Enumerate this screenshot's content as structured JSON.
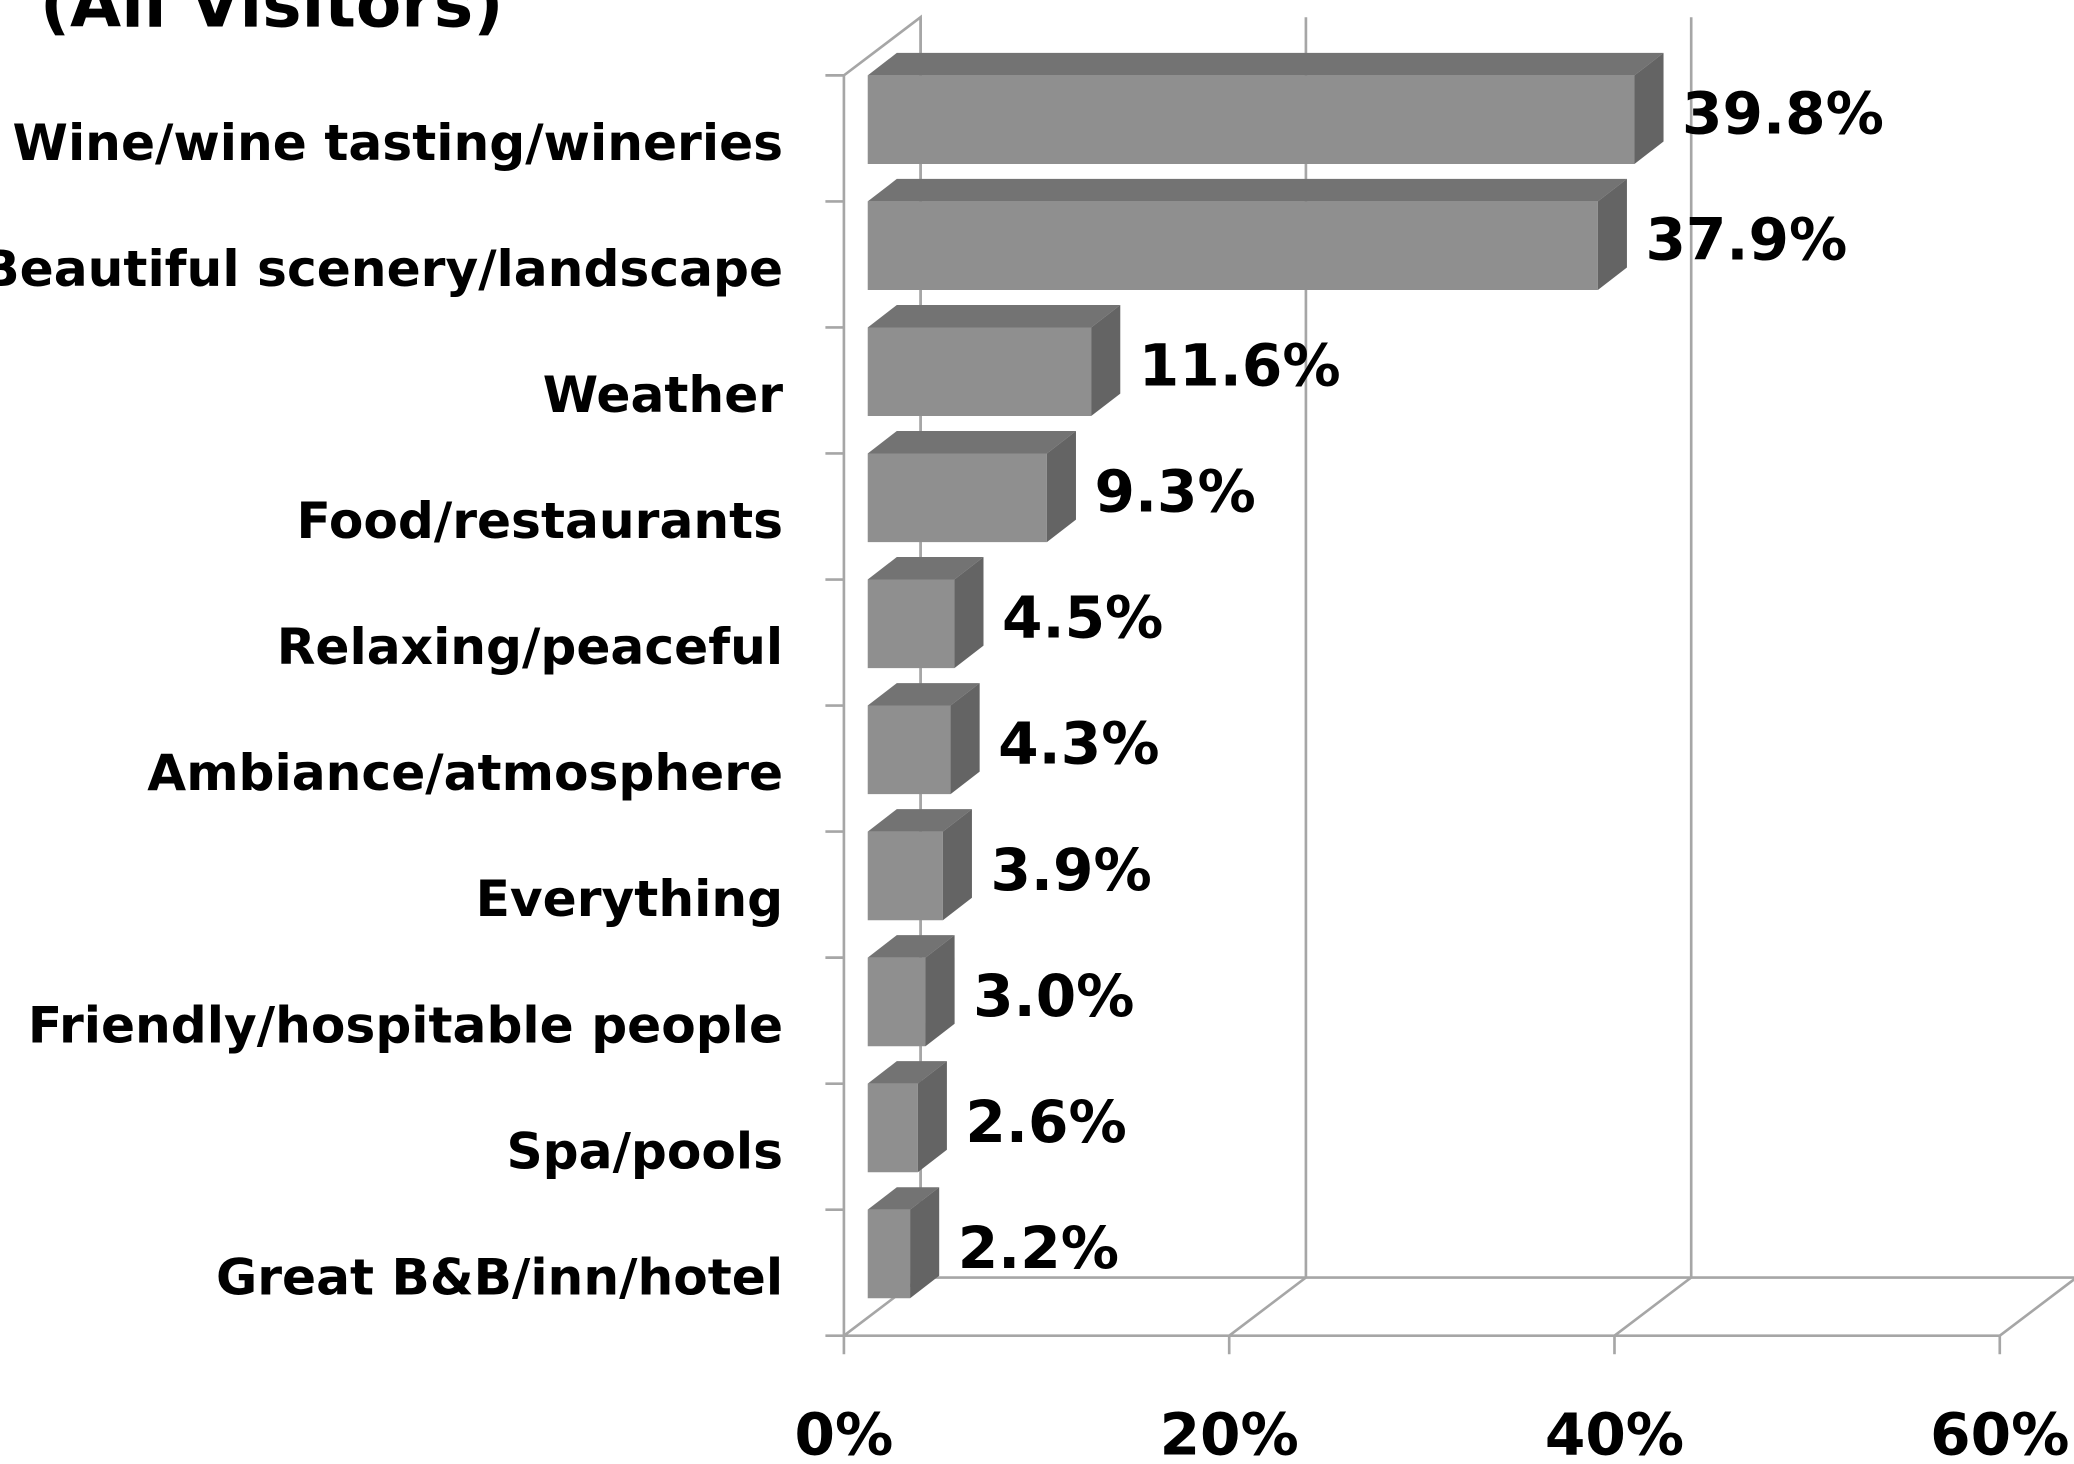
{
  "chart_data": {
    "type": "bar3d-horizontal",
    "title": "(All Visitors)",
    "categories": [
      "Wine/wine tasting/wineries",
      "Beautiful scenery/landscape",
      "Weather",
      "Food/restaurants",
      "Relaxing/peaceful",
      "Ambiance/atmosphere",
      "Everything",
      "Friendly/hospitable people",
      "Spa/pools",
      "Great B&B/inn/hotel"
    ],
    "values": [
      39.8,
      37.9,
      11.6,
      9.3,
      4.5,
      4.3,
      3.9,
      3.0,
      2.6,
      2.2
    ],
    "value_labels": [
      "39.8%",
      "37.9%",
      "11.6%",
      "9.3%",
      "4.5%",
      "4.3%",
      "3.9%",
      "3.0%",
      "2.6%",
      "2.2%"
    ],
    "color": "#8f8f8f",
    "xlim": [
      0,
      60
    ],
    "xticks": [
      {
        "value": 0,
        "label": "0%"
      },
      {
        "value": 20,
        "label": "20%"
      },
      {
        "value": 40,
        "label": "40%"
      },
      {
        "value": 60,
        "label": "60%"
      }
    ],
    "grid": true
  }
}
